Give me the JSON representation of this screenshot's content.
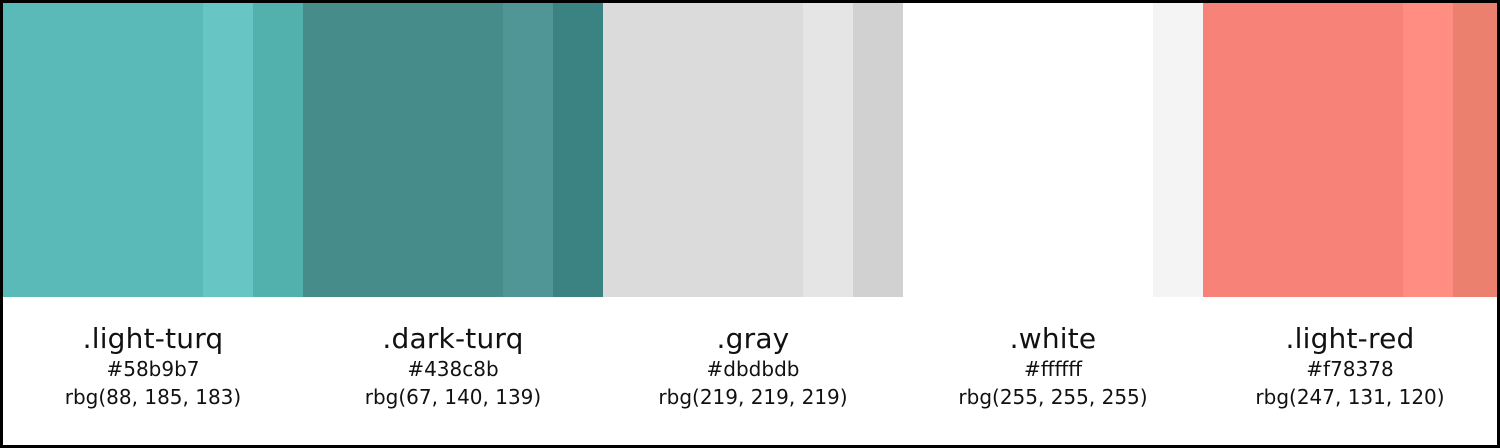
{
  "swatches": [
    {
      "name": ".light-turq",
      "hex": "#58b9b7",
      "rgb": "rbg(88, 185, 183)",
      "colors": {
        "main": "#5abab7",
        "light": "#67c6c3",
        "dark": "#52b0ad"
      }
    },
    {
      "name": ".dark-turq",
      "hex": "#438c8b",
      "rgb": "rbg(67, 140, 139)",
      "colors": {
        "main": "#458c8b",
        "light": "#509696",
        "dark": "#3b8382"
      }
    },
    {
      "name": ".gray",
      "hex": "#dbdbdb",
      "rgb": "rbg(219, 219, 219)",
      "colors": {
        "main": "#dbdbdb",
        "light": "#e5e5e5",
        "dark": "#d1d1d1"
      }
    },
    {
      "name": ".white",
      "hex": "#ffffff",
      "rgb": "rbg(255, 255, 255)",
      "colors": {
        "main": "#ffffff",
        "light": "#ffffff",
        "dark": "#f4f4f4"
      }
    },
    {
      "name": ".light-red",
      "hex": "#f78378",
      "rgb": "rbg(247, 131, 120)",
      "colors": {
        "main": "#f78378",
        "light": "#ff8d82",
        "dark": "#ec806e"
      }
    }
  ]
}
